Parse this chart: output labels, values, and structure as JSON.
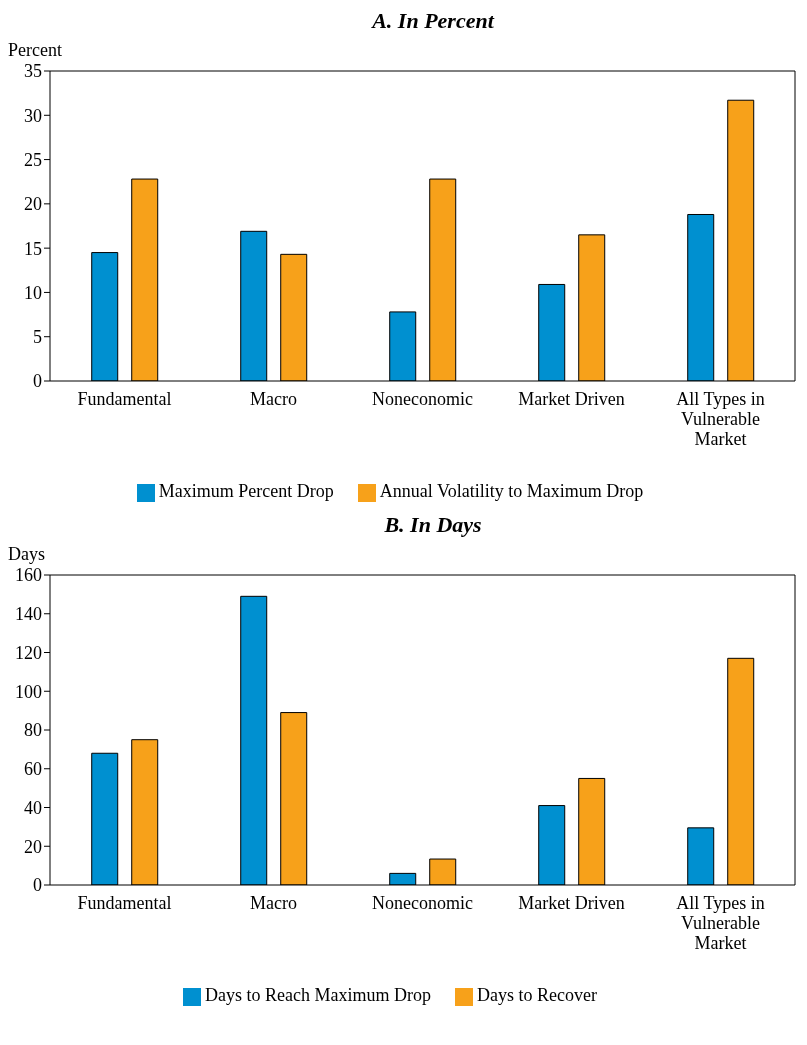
{
  "chart_data": [
    {
      "type": "bar",
      "title": "A. In Percent",
      "ylabel": "Percent",
      "categories": [
        "Fundamental",
        "Macro",
        "Noneconomic",
        "Market Driven",
        "All Types in Vulnerable Market"
      ],
      "series": [
        {
          "name": "Maximum Percent Drop",
          "color": "#0090d0",
          "values": [
            14.5,
            16.9,
            7.8,
            10.9,
            18.8
          ]
        },
        {
          "name": "Annual Volatility to Maximum Drop",
          "color": "#f7a11a",
          "values": [
            22.8,
            14.3,
            22.8,
            16.5,
            31.7
          ]
        }
      ],
      "ylim": [
        0,
        35
      ],
      "yticks": [
        0,
        5,
        10,
        15,
        20,
        25,
        30,
        35
      ],
      "grid": false,
      "legend": "bottom"
    },
    {
      "type": "bar",
      "title": "B. In Days",
      "ylabel": "Days",
      "categories": [
        "Fundamental",
        "Macro",
        "Noneconomic",
        "Market Driven",
        "All Types in Vulnerable Market"
      ],
      "series": [
        {
          "name": "Days to Reach Maximum Drop",
          "color": "#0090d0",
          "values": [
            68,
            149,
            6,
            41,
            29.5
          ]
        },
        {
          "name": "Days to Recover",
          "color": "#f7a11a",
          "values": [
            75,
            89,
            13.4,
            55,
            117
          ]
        }
      ],
      "ylim": [
        0,
        160
      ],
      "yticks": [
        0,
        20,
        40,
        60,
        80,
        100,
        120,
        140,
        160
      ],
      "grid": false,
      "legend": "bottom"
    }
  ]
}
